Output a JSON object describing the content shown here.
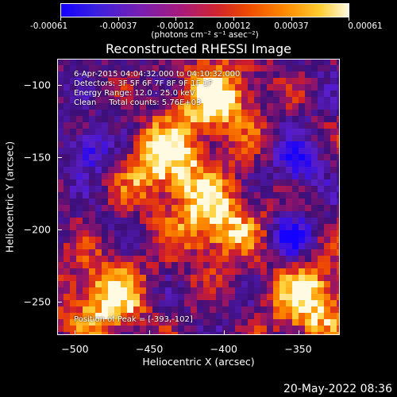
{
  "colorbar": {
    "labels": [
      "-0.00061",
      "-0.00037",
      "-0.00012",
      "0.00012",
      "0.00037",
      "0.00061"
    ],
    "unit": "(photons cm⁻² s⁻¹ asec⁻²)",
    "colors": [
      "#1400ff",
      "#7a1fb0",
      "#d2262a",
      "#ff8a00",
      "#fffbe0"
    ]
  },
  "title": "Reconstructed RHESSI Image",
  "annotations": {
    "time": "6-Apr-2015 04:04:32.000 to 04:10:32.000",
    "detectors": "Detectors: 3F 5F 6F 7F 8F 9F 1F 1F",
    "energy": "Energy Range: 12.0 - 25.0 keV",
    "clean": "Clean     Total counts: 5.76E+03",
    "peak": "Position of Peak = [-393,-102]"
  },
  "chart_data": {
    "type": "heatmap",
    "title": "Reconstructed RHESSI Image",
    "xlabel": "Heliocentric X (arcsec)",
    "ylabel": "Heliocentric Y (arcsec)",
    "xlim": [
      -512,
      -322
    ],
    "ylim": [
      -273,
      -82
    ],
    "x_ticks": [
      -500,
      -450,
      -400,
      -350
    ],
    "y_ticks": [
      -100,
      -150,
      -200,
      -250
    ],
    "colorbar_range": [
      -0.00061,
      0.00061
    ],
    "peak_position": [
      -393,
      -102
    ],
    "bright_features": [
      {
        "x": -405,
        "y": -110
      },
      {
        "x": -440,
        "y": -155
      },
      {
        "x": -405,
        "y": -195
      },
      {
        "x": -480,
        "y": -248
      },
      {
        "x": -340,
        "y": -250
      }
    ],
    "dark_features": [
      {
        "x": -490,
        "y": -145
      },
      {
        "x": -355,
        "y": -205
      },
      {
        "x": -350,
        "y": -155
      }
    ]
  },
  "date": "20-May-2022 08:36"
}
